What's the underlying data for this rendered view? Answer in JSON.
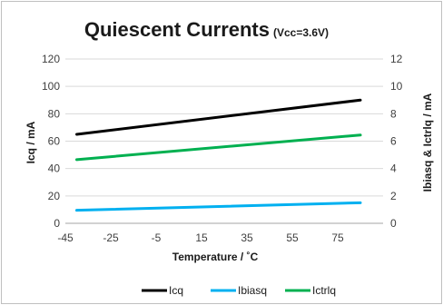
{
  "chart_data": {
    "type": "line",
    "title": "Quiescent Currents",
    "subtitle": "(Vcc=3.6V)",
    "xlabel": "Temperature / ˚C",
    "ylabel": "Icq / mA",
    "y2label": "Ibiasq & Ictrlq / mA",
    "xlim": [
      -45,
      95
    ],
    "ylim": [
      0,
      120
    ],
    "y2lim": [
      0,
      12
    ],
    "xticks": [
      -45,
      -25,
      -5,
      15,
      35,
      55,
      75
    ],
    "yticks": [
      0,
      20,
      40,
      60,
      80,
      100,
      120
    ],
    "y2ticks": [
      0,
      2,
      4,
      6,
      8,
      10,
      12
    ],
    "grid": true,
    "legend_position": "bottom",
    "series": [
      {
        "name": "Icq",
        "axis": "left",
        "color": "#000000",
        "x": [
          -40,
          85
        ],
        "y": [
          65,
          90
        ]
      },
      {
        "name": "Ibiasq",
        "axis": "right",
        "color": "#00b0f0",
        "x": [
          -40,
          85
        ],
        "y": [
          0.95,
          1.5
        ]
      },
      {
        "name": "Ictrlq",
        "axis": "right",
        "color": "#00b050",
        "x": [
          -40,
          85
        ],
        "y": [
          4.65,
          6.45
        ]
      }
    ]
  }
}
